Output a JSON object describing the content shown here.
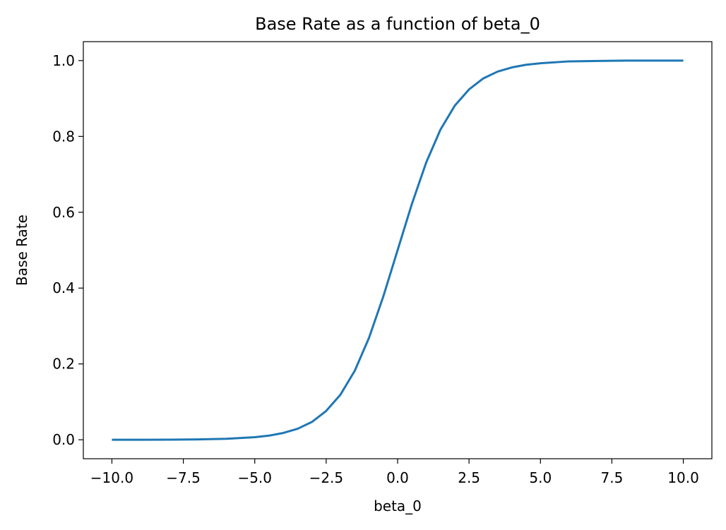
{
  "chart_data": {
    "type": "line",
    "title": "Base Rate as a function of beta_0",
    "xlabel": "beta_0",
    "ylabel": "Base Rate",
    "xlim": [
      -11.0,
      11.0
    ],
    "ylim": [
      -0.05,
      1.05
    ],
    "grid": false,
    "x_ticks": [
      -10.0,
      -7.5,
      -5.0,
      -2.5,
      0.0,
      2.5,
      5.0,
      7.5,
      10.0
    ],
    "x_tick_labels": [
      "−10.0",
      "−7.5",
      "−5.0",
      "−2.5",
      "0.0",
      "2.5",
      "5.0",
      "7.5",
      "10.0"
    ],
    "y_ticks": [
      0.0,
      0.2,
      0.4,
      0.6,
      0.8,
      1.0
    ],
    "y_tick_labels": [
      "0.0",
      "0.2",
      "0.4",
      "0.6",
      "0.8",
      "1.0"
    ],
    "series": [
      {
        "color": "#1f77b4",
        "x": [
          -10.0,
          -9.0,
          -8.0,
          -7.0,
          -6.0,
          -5.0,
          -4.5,
          -4.0,
          -3.5,
          -3.0,
          -2.5,
          -2.0,
          -1.5,
          -1.0,
          -0.5,
          0.0,
          0.5,
          1.0,
          1.5,
          2.0,
          2.5,
          3.0,
          3.5,
          4.0,
          4.5,
          5.0,
          6.0,
          7.0,
          8.0,
          9.0,
          10.0
        ],
        "y": [
          0.0,
          0.0001,
          0.0003,
          0.0009,
          0.0025,
          0.0067,
          0.011,
          0.018,
          0.029,
          0.047,
          0.076,
          0.119,
          0.182,
          0.269,
          0.378,
          0.5,
          0.622,
          0.731,
          0.818,
          0.881,
          0.924,
          0.953,
          0.971,
          0.982,
          0.989,
          0.993,
          0.998,
          0.999,
          1.0,
          1.0,
          1.0
        ]
      }
    ]
  }
}
